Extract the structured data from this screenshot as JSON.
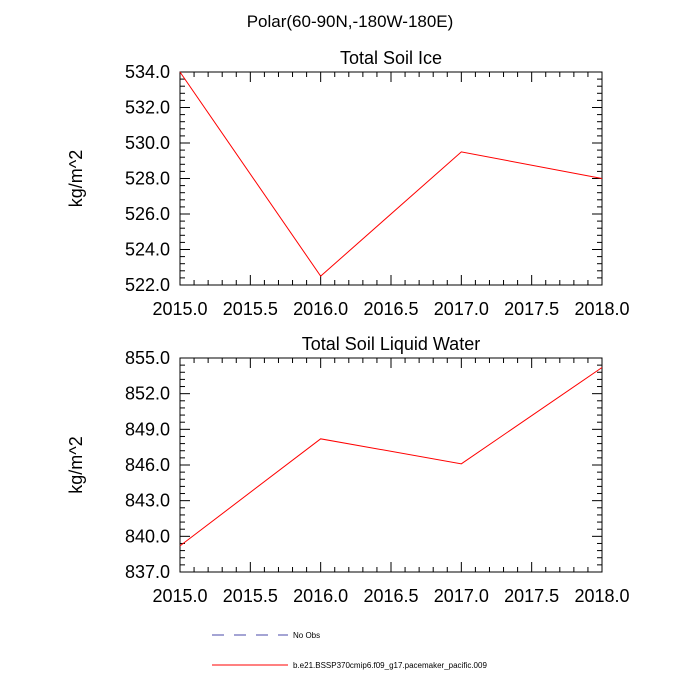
{
  "figure": {
    "suptitle": "Polar(60-90N,-180W-180E)"
  },
  "chart_data": [
    {
      "type": "line",
      "title": "Total Soil Ice",
      "xlabel": "",
      "ylabel": "kg/m^2",
      "xlim": [
        2015.0,
        2018.0
      ],
      "ylim": [
        522.0,
        534.0
      ],
      "xticks": [
        "2015.0",
        "2015.5",
        "2016.0",
        "2016.5",
        "2017.0",
        "2017.5",
        "2018.0"
      ],
      "yticks": [
        "522.0",
        "524.0",
        "526.0",
        "528.0",
        "530.0",
        "532.0",
        "534.0"
      ],
      "x": [
        2015.0,
        2016.0,
        2017.0,
        2018.0
      ],
      "series": [
        {
          "name": "b.e21.BSSP370cmip6.f09_g17.pacemaker_pacific.009",
          "color": "#ff0000",
          "values": [
            534.0,
            522.5,
            529.5,
            528.0
          ]
        }
      ],
      "grid": false
    },
    {
      "type": "line",
      "title": "Total Soil Liquid Water",
      "xlabel": "",
      "ylabel": "kg/m^2",
      "xlim": [
        2015.0,
        2018.0
      ],
      "ylim": [
        837.0,
        855.0
      ],
      "xticks": [
        "2015.0",
        "2015.5",
        "2016.0",
        "2016.5",
        "2017.0",
        "2017.5",
        "2018.0"
      ],
      "yticks": [
        "837.0",
        "840.0",
        "843.0",
        "846.0",
        "849.0",
        "852.0",
        "855.0"
      ],
      "x": [
        2015.0,
        2016.0,
        2017.0,
        2018.0
      ],
      "series": [
        {
          "name": "b.e21.BSSP370cmip6.f09_g17.pacemaker_pacific.009",
          "color": "#ff0000",
          "values": [
            839.2,
            848.2,
            846.1,
            854.2
          ]
        }
      ],
      "grid": false
    }
  ],
  "legend": {
    "placement": "bottom",
    "entries": [
      {
        "label": "No Obs",
        "color": "#4a4aa8",
        "style": "dashed"
      },
      {
        "label": "b.e21.BSSP370cmip6.f09_g17.pacemaker_pacific.009",
        "color": "#ff0000",
        "style": "solid"
      }
    ]
  }
}
